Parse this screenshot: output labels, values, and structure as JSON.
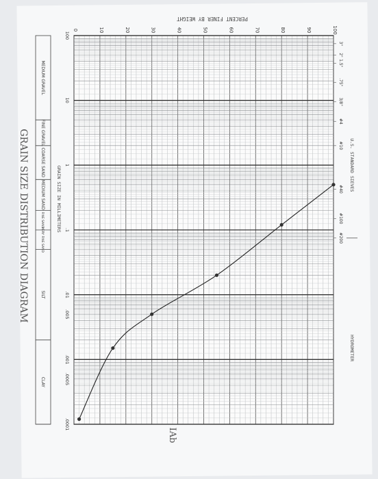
{
  "chart_data": {
    "type": "line",
    "title": "GRAIN SIZE DISTRIBUTION DIAGRAM",
    "xlabel": "GRAIN SIZE IN MILLIMETERS",
    "ylabel": "PERCENT FINER BY WEIGHT",
    "x_scale": "log",
    "x_reversed": true,
    "xlim": [
      0.0001,
      100
    ],
    "ylim": [
      0,
      100
    ],
    "x_tick_labels": [
      {
        "value": 100,
        "label": "100"
      },
      {
        "value": 10,
        "label": "10"
      },
      {
        "value": 1,
        "label": "1"
      },
      {
        "value": 0.1,
        "label": ".1"
      },
      {
        "value": 0.01,
        "label": ".01"
      },
      {
        "value": 0.005,
        "label": ".005"
      },
      {
        "value": 0.001,
        "label": ".001"
      },
      {
        "value": 0.0005,
        "label": ".0005"
      },
      {
        "value": 0.0001,
        "label": ".0001"
      }
    ],
    "y_ticks": [
      0,
      10,
      20,
      30,
      40,
      50,
      60,
      70,
      80,
      90,
      100
    ],
    "sieve_header": "U.S. STANDARD SIEVES",
    "hydrometer_label": "HYDROMETER",
    "sieves": [
      {
        "label": "3\"",
        "size": 75
      },
      {
        "label": "2\"",
        "size": 50
      },
      {
        "label": "1.5\"",
        "size": 37.5
      },
      {
        "label": ".75\"",
        "size": 19
      },
      {
        "label": "3/8\"",
        "size": 9.5
      },
      {
        "label": "#4",
        "size": 4.75
      },
      {
        "label": "#10",
        "size": 2.0
      },
      {
        "label": "#40",
        "size": 0.425
      },
      {
        "label": "#100",
        "size": 0.15
      },
      {
        "label": "#200",
        "size": 0.075
      }
    ],
    "series": [
      {
        "x": [
          0.5,
          0.12,
          0.02,
          0.005,
          0.0015,
          0.00012
        ],
        "y": [
          100,
          80,
          55,
          30,
          15,
          2
        ]
      }
    ],
    "classification": [
      {
        "label": "MEDIUM GRAVEL",
        "from": 100,
        "to": 5
      },
      {
        "label": "FINE GRAVEL",
        "from": 5,
        "to": 2
      },
      {
        "label": "COARSE SAND",
        "from": 2,
        "to": 0.6
      },
      {
        "label": "MEDIUM SAND",
        "from": 0.6,
        "to": 0.2
      },
      {
        "label": "FINE SAND",
        "from": 0.2,
        "to": 0.1
      },
      {
        "label": "VERY FINE SAND",
        "from": 0.1,
        "to": 0.05
      },
      {
        "label": "SILT",
        "from": 0.05,
        "to": 0.002
      },
      {
        "label": "CLAY",
        "from": 0.002,
        "to": 0.0001
      }
    ],
    "figure_label": "IAb"
  }
}
